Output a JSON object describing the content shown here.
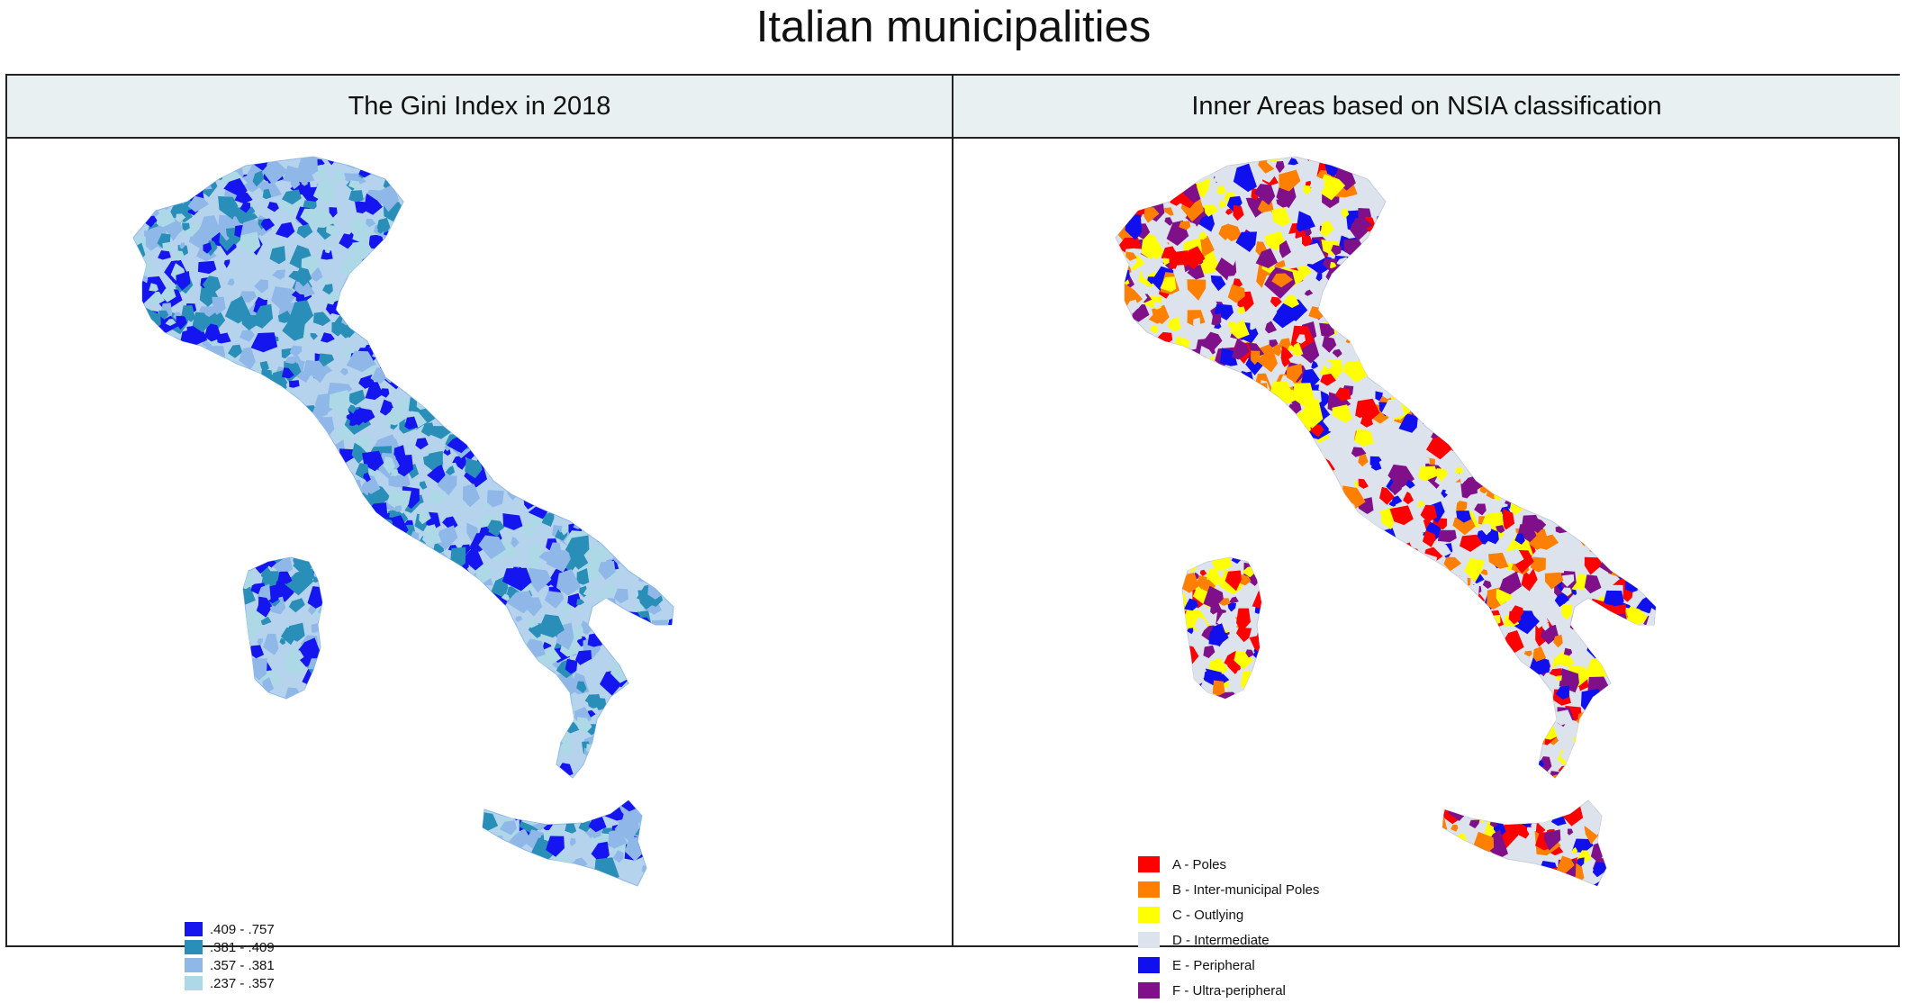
{
  "title": "Italian municipalities",
  "panels": [
    {
      "title": "The Gini Index in 2018",
      "legend": [
        {
          "label": ".409 - .757",
          "color": "#1515f0"
        },
        {
          "label": ".381 - .409",
          "color": "#2a8fb8"
        },
        {
          "label": ".357 - .381",
          "color": "#8fb8e8"
        },
        {
          "label": ".237 - .357",
          "color": "#add8e6"
        }
      ],
      "base_color": "#b5d3ec"
    },
    {
      "title": "Inner Areas based on NSIA classification",
      "legend": [
        {
          "label": "A - Poles",
          "color": "#ff0000"
        },
        {
          "label": "B - Inter-municipal Poles",
          "color": "#ff8000"
        },
        {
          "label": "C - Outlying",
          "color": "#ffff00"
        },
        {
          "label": "D - Intermediate",
          "color": "#dde3ec"
        },
        {
          "label": "E - Peripheral",
          "color": "#1010ee"
        },
        {
          "label": "F - Ultra-peripheral",
          "color": "#80108a"
        }
      ],
      "base_color": "#dde3ec"
    }
  ]
}
